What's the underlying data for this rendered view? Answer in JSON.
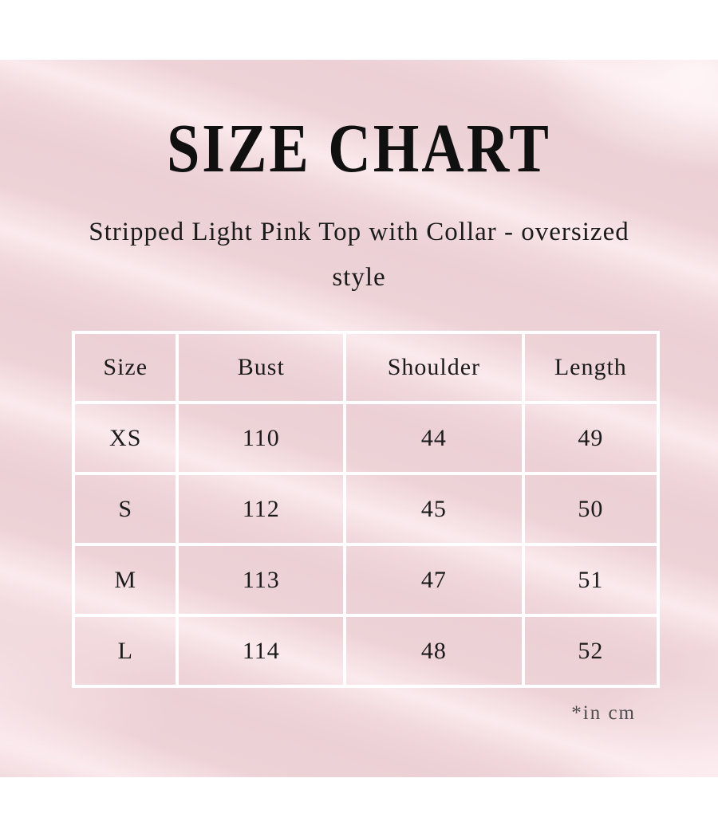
{
  "header": {
    "title": "SIZE CHART",
    "subtitle": "Stripped Light Pink Top with Collar - oversized style"
  },
  "footnote": "*in cm",
  "colors": {
    "page_background": "#ffffff",
    "canvas_pink": "#edd2d6",
    "canvas_highlight": "#fdeef1",
    "grid_line": "#ffffff",
    "text_primary": "#1b1b1b",
    "title_text": "#101010",
    "footnote_text": "#4d4d4d"
  },
  "chart_data": {
    "type": "table",
    "title": "SIZE CHART",
    "subtitle": "Stripped Light Pink Top with Collar - oversized style",
    "unit": "cm",
    "columns": [
      "Size",
      "Bust",
      "Shoulder",
      "Length"
    ],
    "rows": [
      [
        "XS",
        110,
        44,
        49
      ],
      [
        "S",
        112,
        45,
        50
      ],
      [
        "M",
        113,
        47,
        51
      ],
      [
        "L",
        114,
        48,
        52
      ]
    ],
    "footnote": "*in cm",
    "layout_hints": {
      "grid": "white 4px lines on transparent pink cells",
      "header_row": true,
      "text_align": "center"
    }
  }
}
